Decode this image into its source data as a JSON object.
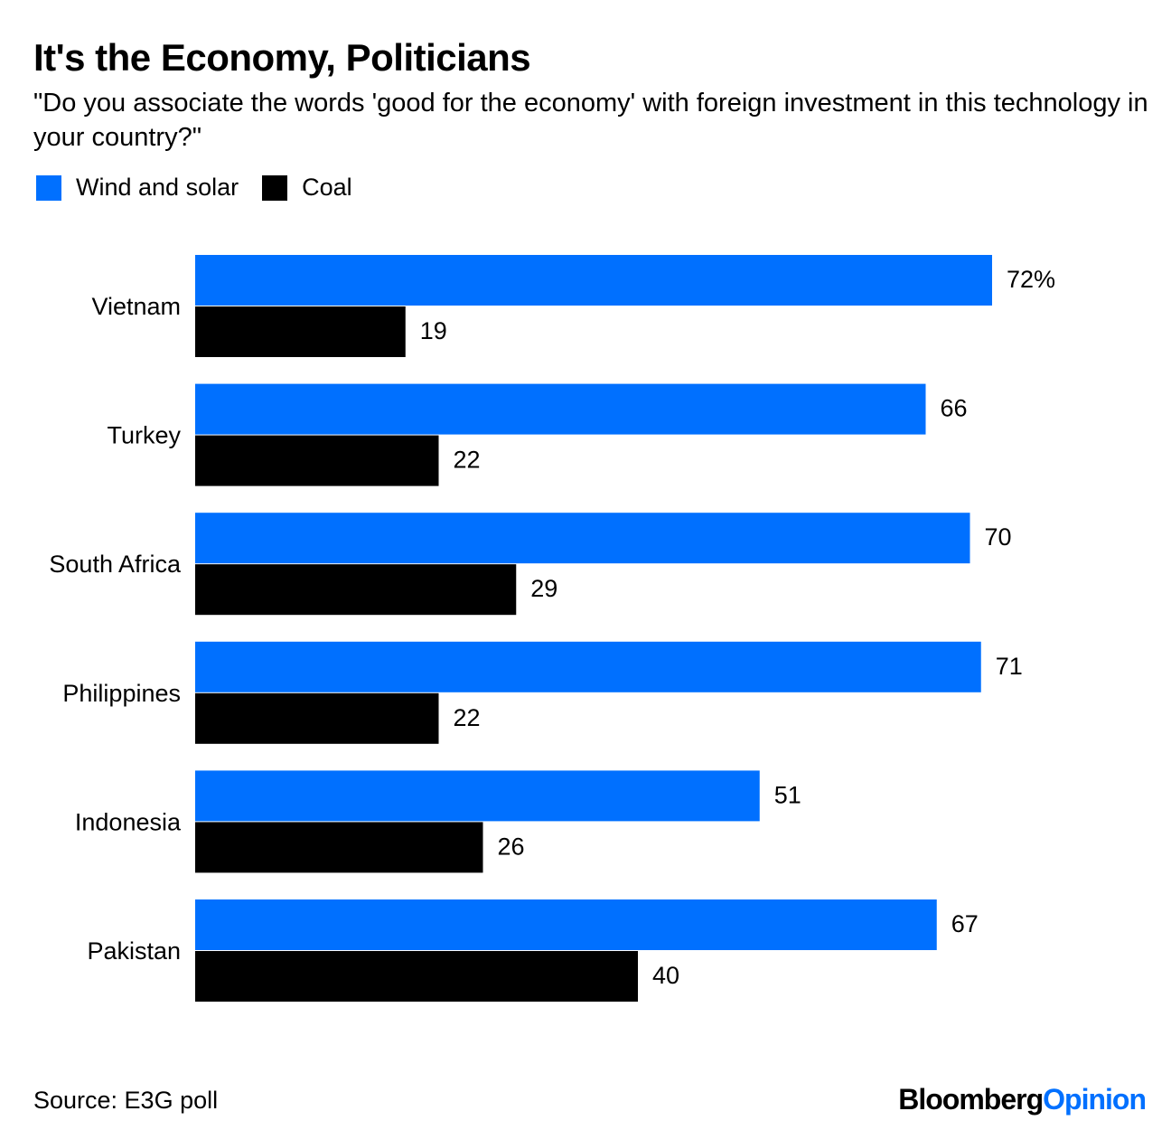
{
  "header": {
    "title": "It's the Economy, Politicians",
    "subtitle": "\"Do you associate the words 'good for the economy' with foreign investment in this technology in your country?\""
  },
  "legend": {
    "items": [
      {
        "label": "Wind and solar",
        "color": "#0070ff"
      },
      {
        "label": "Coal",
        "color": "#000000"
      }
    ]
  },
  "footer": {
    "source": "Source: E3G poll",
    "logo_brand": "Bloomberg",
    "logo_product": "Opinion"
  },
  "chart_data": {
    "type": "bar",
    "orientation": "horizontal",
    "title": "It's the Economy, Politicians",
    "categories": [
      "Vietnam",
      "Turkey",
      "South Africa",
      "Philippines",
      "Indonesia",
      "Pakistan"
    ],
    "series": [
      {
        "name": "Wind and solar",
        "color": "#0070ff",
        "values": [
          72,
          66,
          70,
          71,
          51,
          67
        ],
        "labels": [
          "72%",
          "66",
          "70",
          "71",
          "51",
          "67"
        ]
      },
      {
        "name": "Coal",
        "color": "#000000",
        "values": [
          19,
          22,
          29,
          22,
          26,
          40
        ],
        "labels": [
          "19",
          "22",
          "29",
          "22",
          "26",
          "40"
        ]
      }
    ],
    "unit": "%",
    "xlim": [
      0,
      72
    ],
    "grid": false,
    "legend_position": "top-left"
  }
}
